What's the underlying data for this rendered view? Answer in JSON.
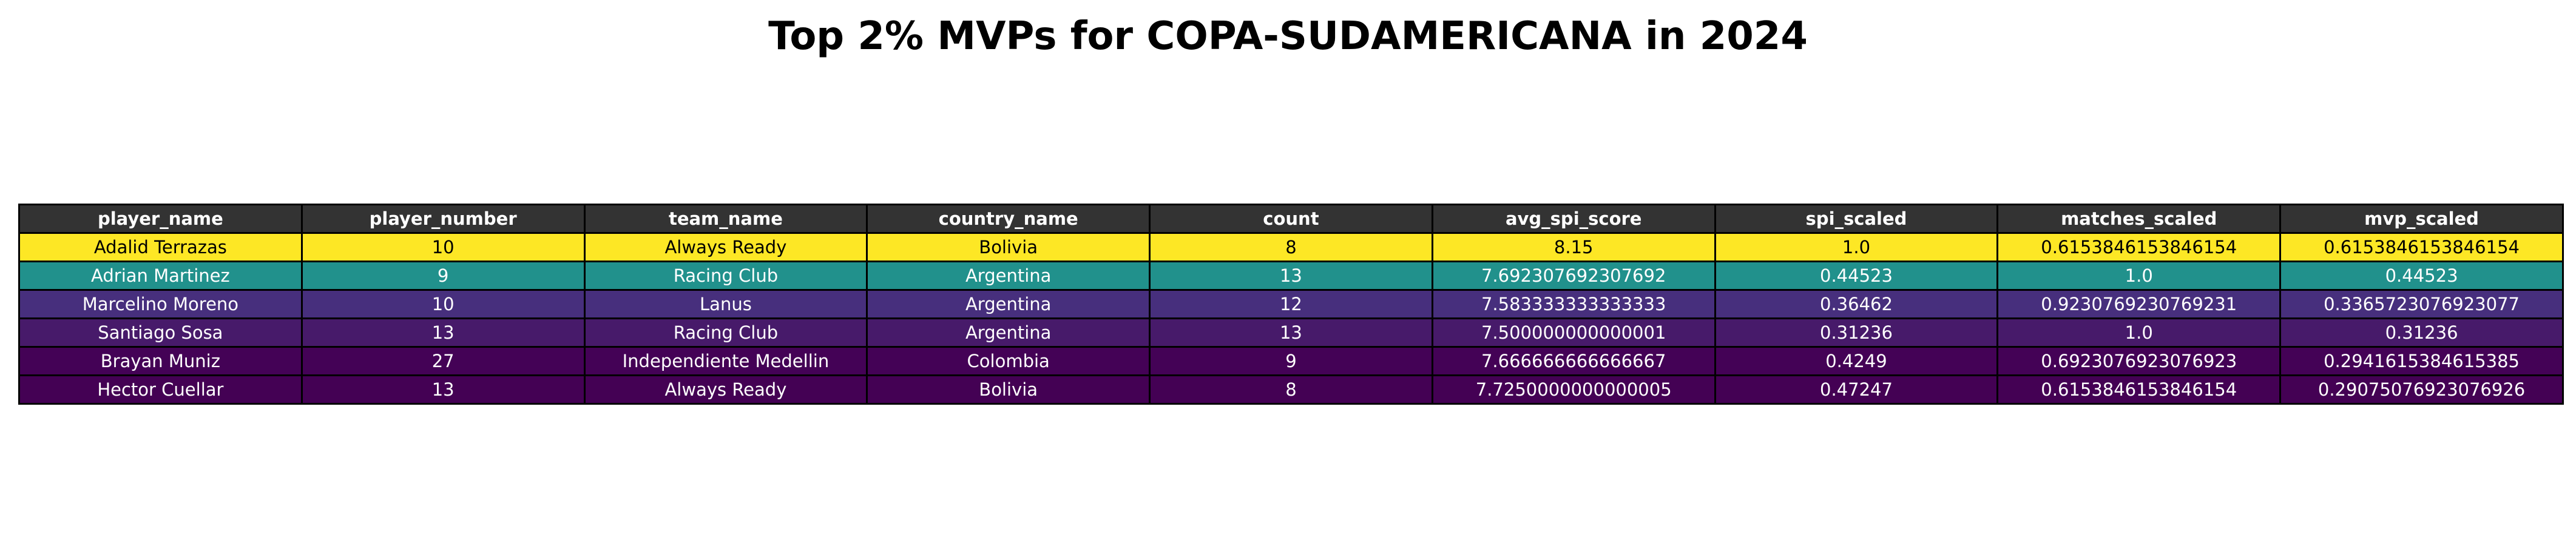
{
  "title": "Top 2% MVPs for COPA-SUDAMERICANA in 2024",
  "header_color": "#333333",
  "chart_data": {
    "type": "table",
    "title": "Top 2% MVPs for COPA-SUDAMERICANA in 2024",
    "columns": [
      "player_name",
      "player_number",
      "team_name",
      "country_name",
      "count",
      "avg_spi_score",
      "spi_scaled",
      "matches_scaled",
      "mvp_scaled"
    ],
    "rows": [
      {
        "cells": [
          "Adalid Terrazas",
          "10",
          "Always Ready",
          "Bolivia",
          "8",
          "8.15",
          "1.0",
          "0.6153846153846154",
          "0.6153846153846154"
        ],
        "color": "#fde725",
        "text_color": "#000000"
      },
      {
        "cells": [
          "Adrian Martinez",
          "9",
          "Racing Club",
          "Argentina",
          "13",
          "7.692307692307692",
          "0.44523",
          "1.0",
          "0.44523"
        ],
        "color": "#21918c",
        "text_color": "#ffffff"
      },
      {
        "cells": [
          "Marcelino Moreno",
          "10",
          "Lanus",
          "Argentina",
          "12",
          "7.583333333333333",
          "0.36462",
          "0.9230769230769231",
          "0.3365723076923077"
        ],
        "color": "#472f7d",
        "text_color": "#ffffff"
      },
      {
        "cells": [
          "Santiago Sosa",
          "13",
          "Racing Club",
          "Argentina",
          "13",
          "7.500000000000001",
          "0.31236",
          "1.0",
          "0.31236"
        ],
        "color": "#471a6a",
        "text_color": "#ffffff"
      },
      {
        "cells": [
          "Brayan Muniz",
          "27",
          "Independiente Medellin",
          "Colombia",
          "9",
          "7.666666666666667",
          "0.4249",
          "0.6923076923076923",
          "0.2941615384615385"
        ],
        "color": "#440256",
        "text_color": "#ffffff"
      },
      {
        "cells": [
          "Hector Cuellar",
          "13",
          "Always Ready",
          "Bolivia",
          "8",
          "7.7250000000000005",
          "0.47247",
          "0.6153846153846154",
          "0.29075076923076926"
        ],
        "color": "#440154",
        "text_color": "#ffffff"
      }
    ]
  }
}
